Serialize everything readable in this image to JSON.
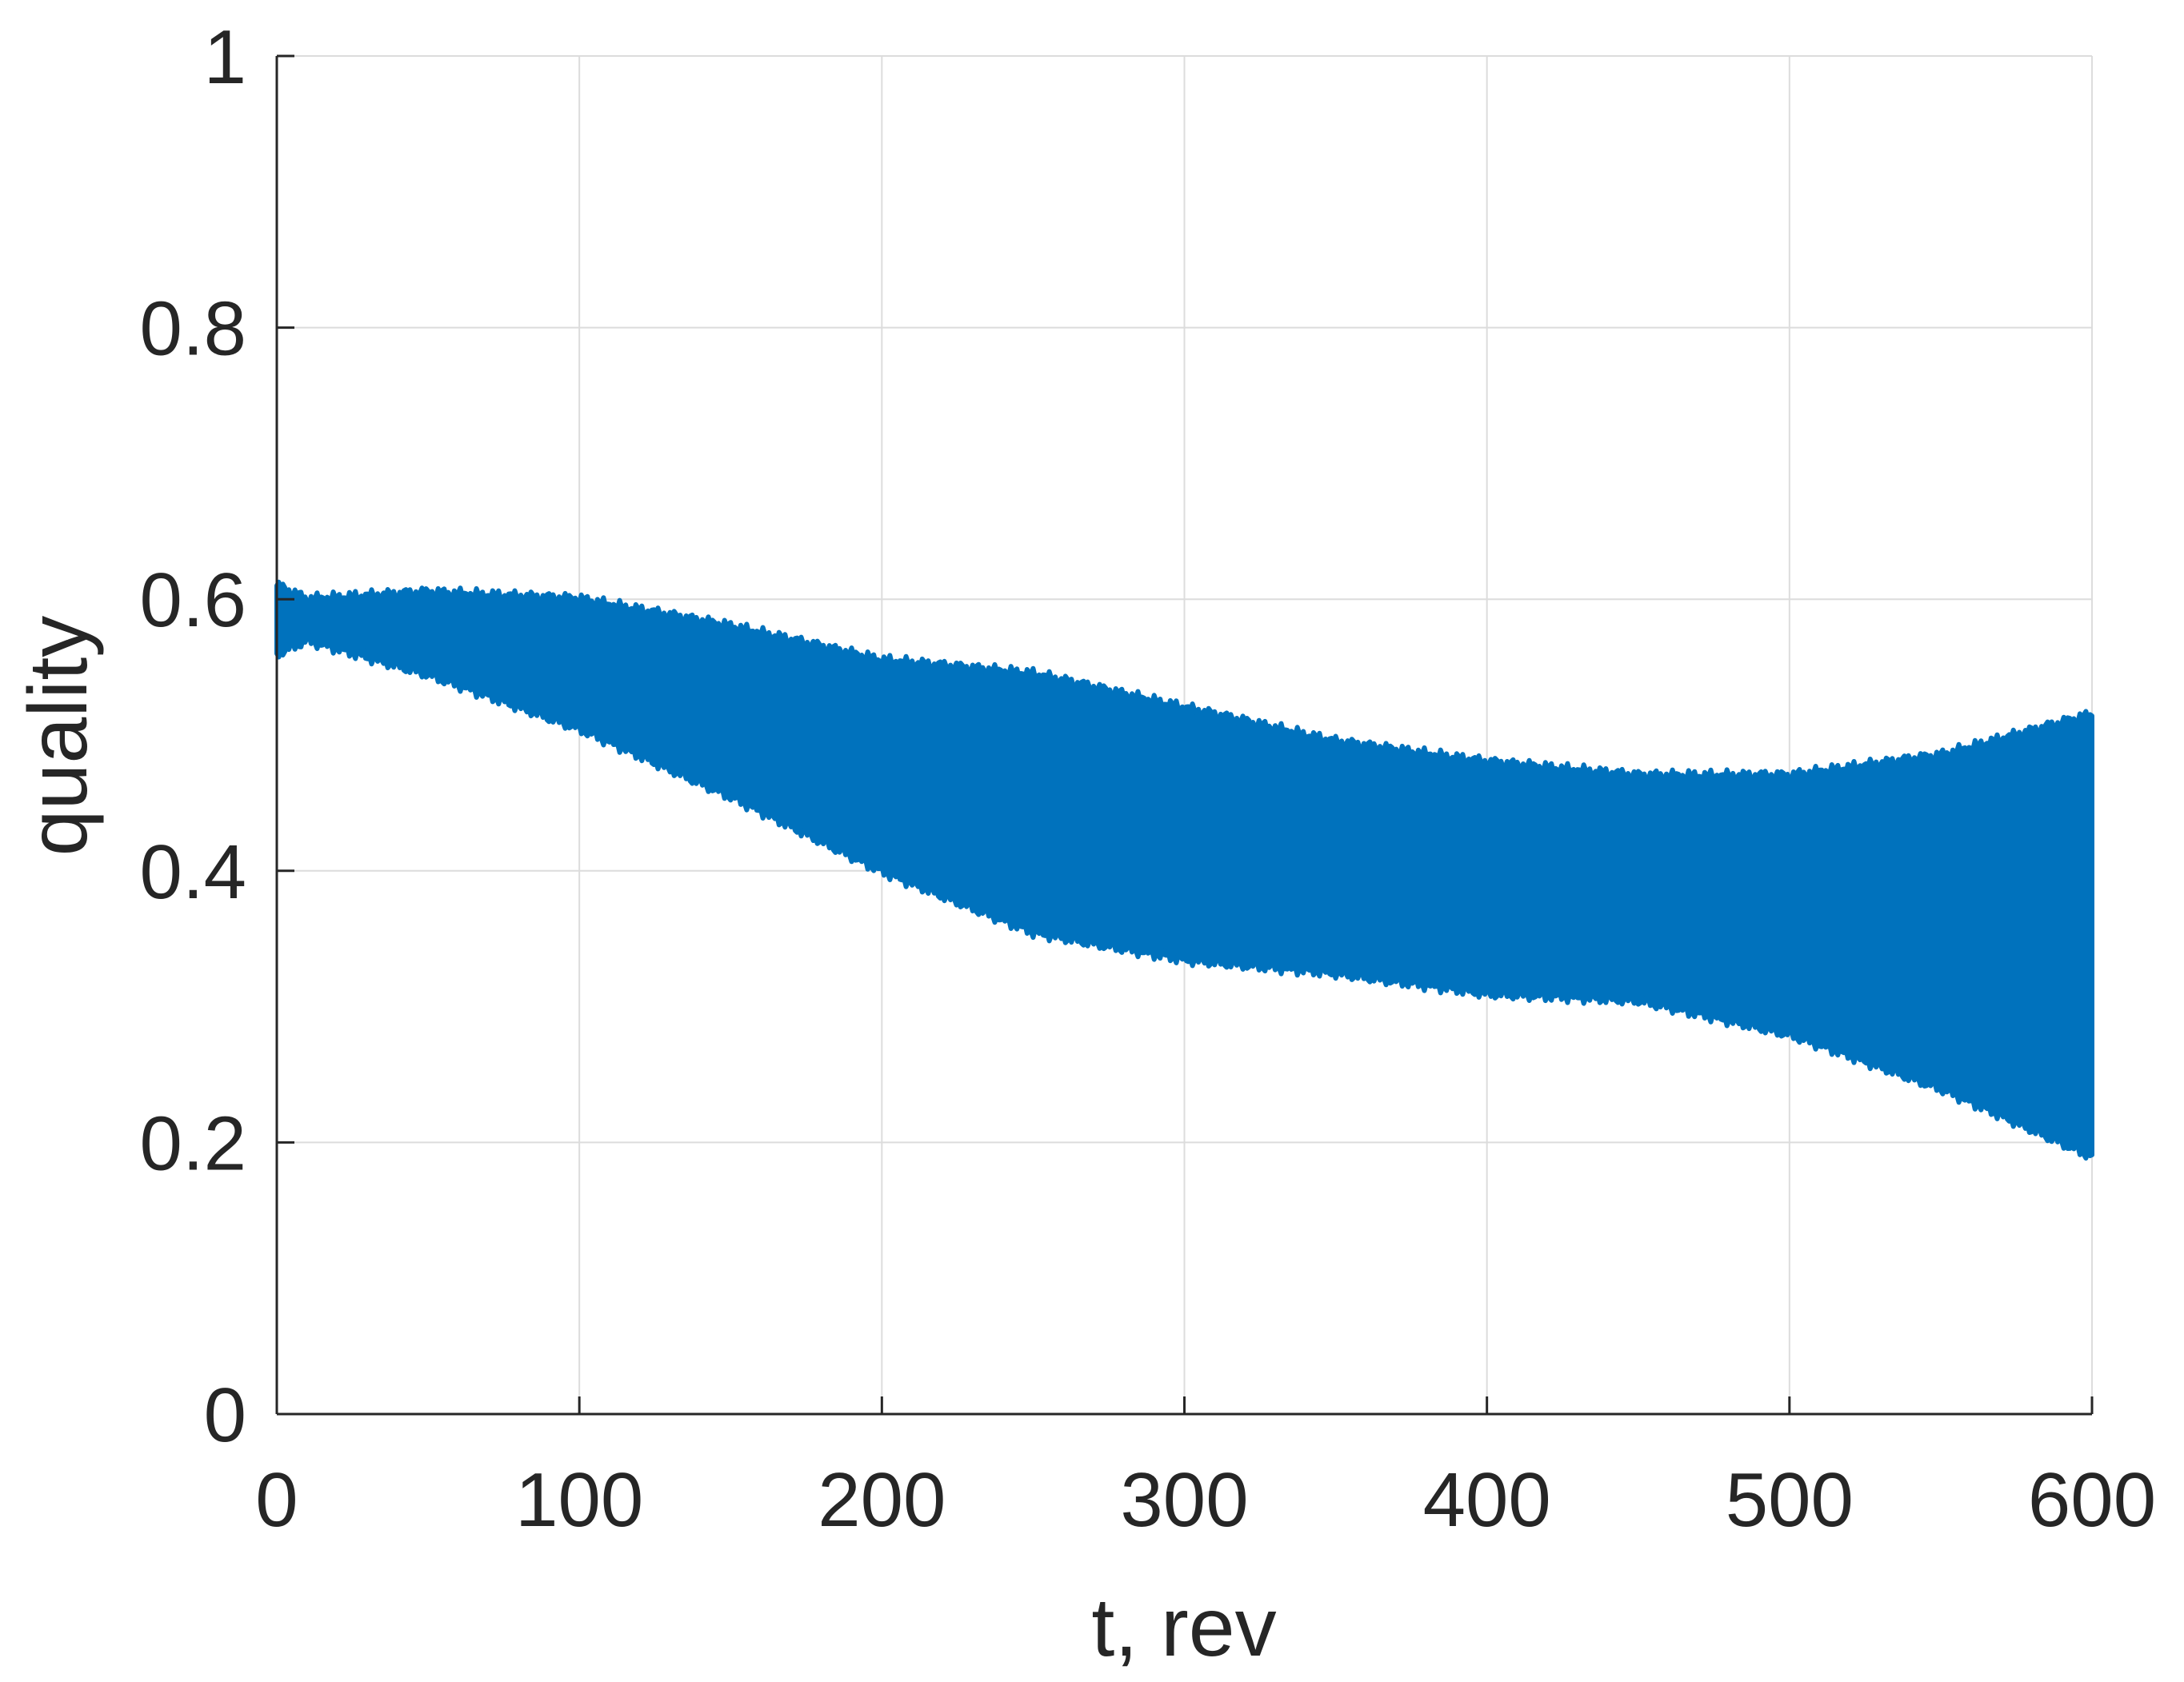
{
  "chart_data": {
    "type": "area",
    "title": "",
    "xlabel": "t, rev",
    "ylabel": "quality",
    "xlim": [
      0,
      600
    ],
    "ylim": [
      0,
      1
    ],
    "xticks": [
      0,
      100,
      200,
      300,
      400,
      500,
      600
    ],
    "yticks": [
      0,
      0.2,
      0.4,
      0.6,
      0.8,
      1
    ],
    "xtick_labels": [
      "0",
      "100",
      "200",
      "300",
      "400",
      "500",
      "600"
    ],
    "ytick_labels": [
      "0",
      "0.2",
      "0.4",
      "0.6",
      "0.8",
      "1"
    ],
    "grid": true,
    "legend": "none",
    "series": [
      {
        "color": "#0072BD",
        "x": [
          0,
          10,
          50,
          100,
          150,
          200,
          250,
          300,
          350,
          400,
          450,
          500,
          550,
          600
        ],
        "upper": [
          0.61,
          0.6,
          0.605,
          0.6,
          0.58,
          0.555,
          0.545,
          0.52,
          0.495,
          0.48,
          0.47,
          0.47,
          0.485,
          0.515
        ],
        "lower": [
          0.56,
          0.57,
          0.545,
          0.505,
          0.455,
          0.4,
          0.355,
          0.335,
          0.325,
          0.31,
          0.305,
          0.28,
          0.24,
          0.19
        ]
      }
    ]
  }
}
